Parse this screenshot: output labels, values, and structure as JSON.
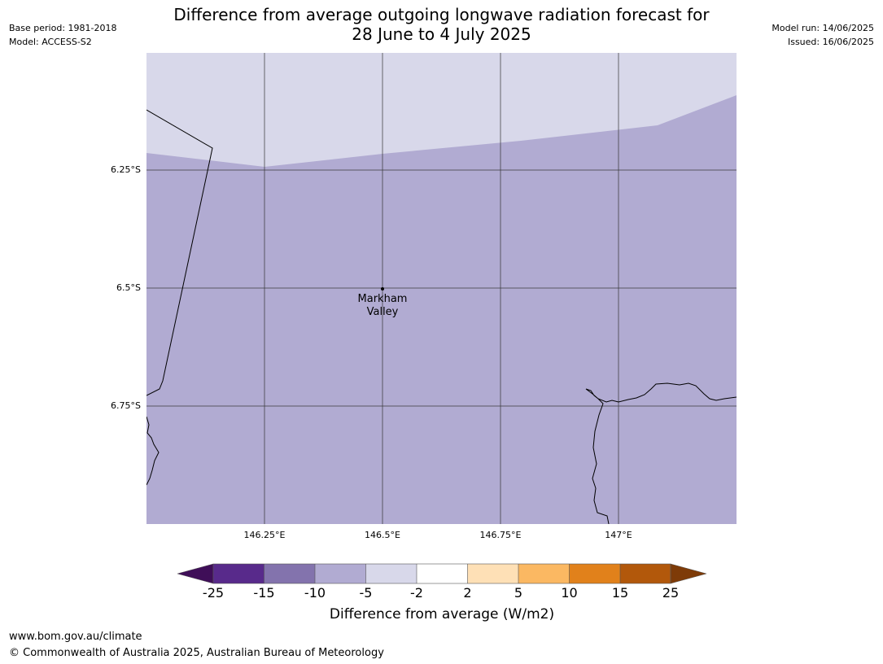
{
  "header": {
    "title_line1": "Difference from average outgoing longwave radiation forecast for",
    "title_line2": "28 June to 4 July 2025",
    "base_period": "Base period: 1981-2018",
    "model": "Model: ACCESS-S2",
    "model_run": "Model run: 14/06/2025",
    "issued": "Issued: 16/06/2025"
  },
  "map": {
    "lat_labels": [
      "6.25°S",
      "6.5°S",
      "6.75°S"
    ],
    "lon_labels": [
      "146.25°E",
      "146.5°E",
      "146.75°E",
      "147°E"
    ],
    "place": {
      "name_line1": "Markham",
      "name_line2": "Valley",
      "lon": 146.5,
      "lat": -6.5
    },
    "fill_colors": {
      "minus10_to_minus5": "#b1abd2",
      "minus5_to_minus2": "#d8d8ea"
    }
  },
  "colorbar": {
    "title": "Difference from average (W/m2)",
    "ticks": [
      "-25",
      "-15",
      "-10",
      "-5",
      "-2",
      "2",
      "5",
      "10",
      "15",
      "25"
    ],
    "colors": [
      "#3f0e58",
      "#582a8b",
      "#8373ad",
      "#b1abd2",
      "#d8d8ea",
      "#ffffff",
      "#fee0b6",
      "#fbb862",
      "#e1811b",
      "#b2580b",
      "#7e3b08"
    ]
  },
  "footer": {
    "url": "www.bom.gov.au/climate",
    "copyright": "© Commonwealth of Australia 2025, Australian Bureau of Meteorology"
  }
}
